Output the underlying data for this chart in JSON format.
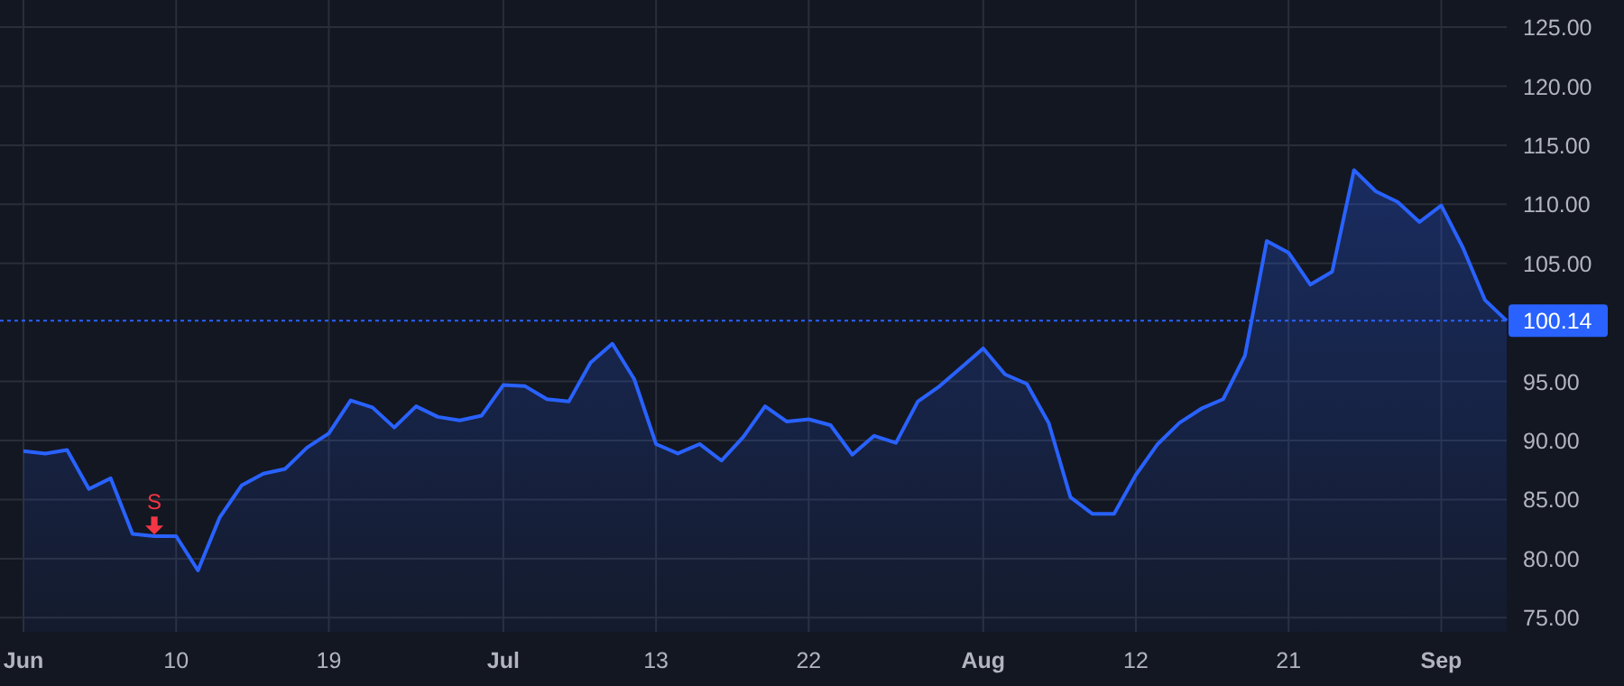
{
  "chart_data": {
    "type": "area",
    "categories": [
      "Jun",
      null,
      null,
      null,
      null,
      null,
      null,
      "10",
      null,
      null,
      null,
      null,
      null,
      null,
      "19",
      null,
      null,
      null,
      null,
      null,
      null,
      null,
      "Jul",
      null,
      null,
      null,
      null,
      null,
      null,
      "13",
      null,
      null,
      null,
      null,
      null,
      null,
      "22",
      null,
      null,
      null,
      null,
      null,
      null,
      null,
      "Aug",
      null,
      null,
      null,
      null,
      null,
      null,
      "12",
      null,
      null,
      null,
      null,
      null,
      null,
      "21",
      null,
      null,
      null,
      null,
      null,
      null,
      "Sep",
      null,
      null,
      null
    ],
    "series": [
      {
        "color": "#2962ff",
        "values": [
          89.1,
          88.9,
          89.2,
          85.9,
          86.8,
          82.1,
          81.9,
          81.9,
          79.0,
          83.5,
          86.2,
          87.2,
          87.6,
          89.4,
          90.6,
          93.4,
          92.8,
          91.1,
          92.9,
          92.0,
          91.7,
          92.1,
          94.7,
          94.6,
          93.5,
          93.3,
          96.6,
          98.2,
          95.2,
          89.7,
          88.9,
          89.7,
          88.3,
          90.3,
          92.9,
          91.6,
          91.8,
          91.3,
          88.8,
          90.4,
          89.8,
          93.3,
          94.6,
          96.2,
          97.8,
          95.6,
          94.8,
          91.5,
          85.2,
          83.8,
          83.8,
          87.1,
          89.7,
          91.5,
          92.7,
          93.5,
          97.2,
          106.9,
          105.9,
          103.2,
          104.3,
          112.9,
          111.1,
          110.2,
          108.5,
          109.9,
          106.3,
          101.9,
          100.14
        ]
      },
      {
        "type": "scatter",
        "name": "S",
        "color": "#f23645",
        "marker": "triangle",
        "values": [
          null,
          null,
          null,
          null,
          null,
          null,
          82.8,
          null,
          null,
          null,
          null,
          null,
          null,
          null,
          null,
          null,
          null,
          null,
          null,
          null,
          null,
          null,
          null,
          null,
          null,
          null,
          null,
          null,
          null,
          null,
          null,
          null,
          null,
          null,
          null,
          null,
          null,
          null,
          null,
          null,
          null,
          null,
          null,
          null,
          null,
          null,
          null,
          null,
          null,
          null,
          null,
          null,
          null,
          null,
          null,
          null,
          null,
          null,
          null,
          null,
          null,
          null,
          null,
          null,
          null,
          null,
          null,
          null,
          null
        ]
      }
    ],
    "ylim": [
      73.8,
      127.3
    ],
    "yticks": [
      {
        "value": 75,
        "label": "75.00"
      },
      {
        "value": 80,
        "label": "80.00"
      },
      {
        "value": 85,
        "label": "85.00"
      },
      {
        "value": 90,
        "label": "90.00"
      },
      {
        "value": 95,
        "label": "95.00"
      },
      {
        "value": 105,
        "label": "105.00"
      },
      {
        "value": 110,
        "label": "110.00"
      },
      {
        "value": 115,
        "label": "115.00"
      },
      {
        "value": 120,
        "label": "120.00"
      },
      {
        "value": 125,
        "label": "125.00"
      }
    ],
    "grid": true,
    "ref_lines": [
      {
        "axis": "y",
        "value": 100.14,
        "label": "100.14",
        "color": "#2962ff",
        "line_style": "dotted"
      }
    ]
  }
}
